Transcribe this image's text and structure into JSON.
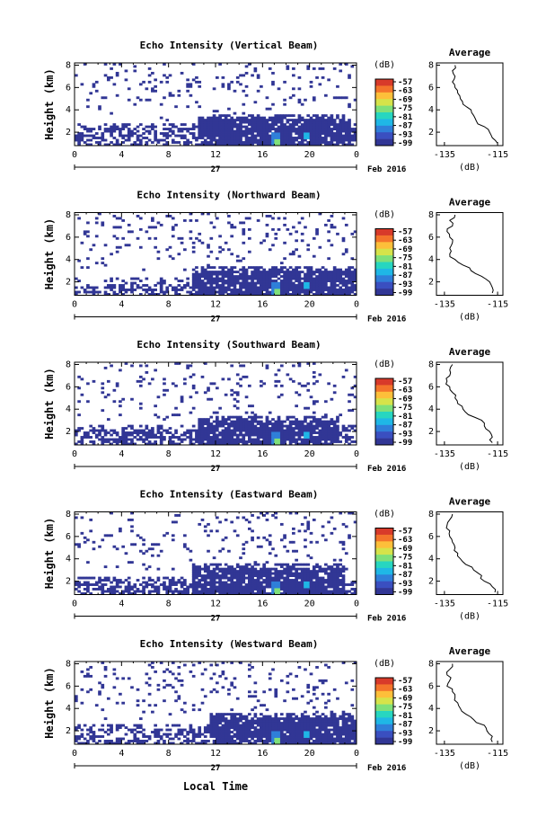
{
  "figure": {
    "xaxis_label": "Local Time",
    "date_label": "27",
    "month_label": "Feb 2016",
    "colorbar_unit": "(dB)",
    "colorbar_ticks": [
      "-57",
      "-63",
      "-69",
      "-75",
      "-81",
      "-87",
      "-93",
      "-99"
    ],
    "colorbar_colors": [
      "#313695",
      "#3a4fc0",
      "#2f7fd9",
      "#1fb7e6",
      "#27d6c0",
      "#7fe07a",
      "#d6e34a",
      "#fdbf3a",
      "#f4742b",
      "#d83a2a"
    ]
  },
  "chart_data": [
    {
      "type": "heatmap",
      "title": "Echo Intensity (Vertical Beam)",
      "ylabel": "Height (km)",
      "xlabel": "Local Time",
      "x_ticks": [
        "0",
        "4",
        "8",
        "12",
        "16",
        "20",
        "0"
      ],
      "y_ticks": [
        "2",
        "4",
        "6",
        "8"
      ],
      "xlim": [
        0,
        24
      ],
      "ylim": [
        0.8,
        8.2
      ],
      "colorbar_label": "(dB)",
      "clim": [
        -99,
        -57
      ],
      "layers": [
        {
          "h_top": 2.8,
          "t_start": 0.0,
          "t_end": 24.0,
          "value": -97,
          "density": 0.55
        },
        {
          "h_top": 3.6,
          "t_start": 10.5,
          "t_end": 23.5,
          "value": -97,
          "density": 0.9
        }
      ],
      "hotspots": [
        {
          "t": 17.2,
          "h_min": 0.8,
          "h_max": 2.0,
          "value": -84
        },
        {
          "t": 19.8,
          "h_min": 1.4,
          "h_max": 2.6,
          "value": -90
        }
      ],
      "average_profile": {
        "title": "Average",
        "xlabel": "(dB)",
        "x_ticks": [
          "-135",
          "-115"
        ],
        "y_ticks": [
          "2",
          "4",
          "6",
          "8"
        ],
        "xlim": [
          -138,
          -113
        ],
        "height": [
          1.0,
          1.5,
          2.0,
          2.5,
          3.0,
          3.5,
          4.0,
          4.5,
          5.0,
          5.5,
          6.0,
          6.5,
          7.0,
          7.5,
          8.0
        ],
        "db": [
          -115,
          -117,
          -118,
          -120,
          -123,
          -124,
          -125,
          -128,
          -129,
          -130,
          -131,
          -132,
          -131,
          -132,
          -131
        ]
      }
    },
    {
      "type": "heatmap",
      "title": "Echo Intensity (Northward Beam)",
      "ylabel": "Height (km)",
      "xlabel": "Local Time",
      "x_ticks": [
        "0",
        "4",
        "8",
        "12",
        "16",
        "20",
        "0"
      ],
      "y_ticks": [
        "2",
        "4",
        "6",
        "8"
      ],
      "xlim": [
        0,
        24
      ],
      "ylim": [
        0.8,
        8.2
      ],
      "colorbar_label": "(dB)",
      "clim": [
        -99,
        -57
      ],
      "layers": [
        {
          "h_top": 2.4,
          "t_start": 0.0,
          "t_end": 24.0,
          "value": -97,
          "density": 0.5
        },
        {
          "h_top": 3.4,
          "t_start": 10.0,
          "t_end": 24.0,
          "value": -97,
          "density": 0.9
        }
      ],
      "hotspots": [
        {
          "t": 17.2,
          "h_min": 0.8,
          "h_max": 2.0,
          "value": -84
        },
        {
          "t": 19.8,
          "h_min": 1.4,
          "h_max": 2.6,
          "value": -90
        }
      ],
      "average_profile": {
        "title": "Average",
        "xlabel": "(dB)",
        "x_ticks": [
          "-135",
          "-115"
        ],
        "y_ticks": [
          "2",
          "4",
          "6",
          "8"
        ],
        "xlim": [
          -138,
          -113
        ],
        "height": [
          1.0,
          1.5,
          2.0,
          2.5,
          3.0,
          3.5,
          4.0,
          4.5,
          5.0,
          5.5,
          6.0,
          6.5,
          7.0,
          7.5,
          8.0
        ],
        "db": [
          -117,
          -117,
          -118,
          -121,
          -125,
          -128,
          -131,
          -133,
          -133,
          -132,
          -133,
          -134,
          -132,
          -133,
          -131
        ]
      }
    },
    {
      "type": "heatmap",
      "title": "Echo Intensity (Southward Beam)",
      "ylabel": "Height (km)",
      "xlabel": "Local Time",
      "x_ticks": [
        "0",
        "4",
        "8",
        "12",
        "16",
        "20",
        "0"
      ],
      "y_ticks": [
        "2",
        "4",
        "6",
        "8"
      ],
      "xlim": [
        0,
        24
      ],
      "ylim": [
        0.8,
        8.2
      ],
      "colorbar_label": "(dB)",
      "clim": [
        -99,
        -57
      ],
      "layers": [
        {
          "h_top": 2.6,
          "t_start": 0.0,
          "t_end": 24.0,
          "value": -97,
          "density": 0.55
        },
        {
          "h_top": 3.4,
          "t_start": 10.5,
          "t_end": 22.5,
          "value": -97,
          "density": 0.9
        }
      ],
      "hotspots": [
        {
          "t": 17.2,
          "h_min": 0.8,
          "h_max": 2.0,
          "value": -84
        },
        {
          "t": 19.8,
          "h_min": 1.4,
          "h_max": 2.6,
          "value": -90
        }
      ],
      "average_profile": {
        "title": "Average",
        "xlabel": "(dB)",
        "x_ticks": [
          "-135",
          "-115"
        ],
        "y_ticks": [
          "2",
          "4",
          "6",
          "8"
        ],
        "xlim": [
          -138,
          -113
        ],
        "height": [
          1.0,
          1.5,
          2.0,
          2.5,
          3.0,
          3.5,
          4.0,
          4.5,
          5.0,
          5.5,
          6.0,
          6.5,
          7.0,
          7.5,
          8.0
        ],
        "db": [
          -117,
          -117,
          -118,
          -120,
          -121,
          -126,
          -128,
          -130,
          -131,
          -132,
          -133,
          -134,
          -133,
          -133,
          -132
        ]
      }
    },
    {
      "type": "heatmap",
      "title": "Echo Intensity (Eastward Beam)",
      "ylabel": "Height (km)",
      "xlabel": "Local Time",
      "x_ticks": [
        "0",
        "4",
        "8",
        "12",
        "16",
        "20",
        "0"
      ],
      "y_ticks": [
        "2",
        "4",
        "6",
        "8"
      ],
      "xlim": [
        0,
        24
      ],
      "ylim": [
        0.8,
        8.2
      ],
      "colorbar_label": "(dB)",
      "clim": [
        -99,
        -57
      ],
      "layers": [
        {
          "h_top": 2.4,
          "t_start": 0.0,
          "t_end": 24.0,
          "value": -97,
          "density": 0.55
        },
        {
          "h_top": 3.6,
          "t_start": 10.0,
          "t_end": 23.0,
          "value": -97,
          "density": 0.9
        }
      ],
      "hotspots": [
        {
          "t": 17.2,
          "h_min": 0.8,
          "h_max": 2.0,
          "value": -84
        },
        {
          "t": 19.8,
          "h_min": 1.4,
          "h_max": 2.6,
          "value": -90
        }
      ],
      "average_profile": {
        "title": "Average",
        "xlabel": "(dB)",
        "x_ticks": [
          "-135",
          "-115"
        ],
        "y_ticks": [
          "2",
          "4",
          "6",
          "8"
        ],
        "xlim": [
          -138,
          -113
        ],
        "height": [
          1.0,
          1.5,
          2.0,
          2.5,
          3.0,
          3.5,
          4.0,
          4.5,
          5.0,
          5.5,
          6.0,
          6.5,
          7.0,
          7.5,
          8.0
        ],
        "db": [
          -116,
          -117,
          -120,
          -121,
          -124,
          -127,
          -129,
          -130,
          -131,
          -132,
          -133,
          -133,
          -134,
          -133,
          -132
        ]
      }
    },
    {
      "type": "heatmap",
      "title": "Echo Intensity (Westward Beam)",
      "ylabel": "Height (km)",
      "xlabel": "Local Time",
      "x_ticks": [
        "0",
        "4",
        "8",
        "12",
        "16",
        "20",
        "0"
      ],
      "y_ticks": [
        "2",
        "4",
        "6",
        "8"
      ],
      "xlim": [
        0,
        24
      ],
      "ylim": [
        0.8,
        8.2
      ],
      "colorbar_label": "(dB)",
      "clim": [
        -99,
        -57
      ],
      "layers": [
        {
          "h_top": 2.6,
          "t_start": 0.0,
          "t_end": 24.0,
          "value": -97,
          "density": 0.5
        },
        {
          "h_top": 3.6,
          "t_start": 11.5,
          "t_end": 24.0,
          "value": -97,
          "density": 0.9
        }
      ],
      "hotspots": [
        {
          "t": 17.2,
          "h_min": 0.8,
          "h_max": 2.0,
          "value": -84
        },
        {
          "t": 19.8,
          "h_min": 1.4,
          "h_max": 2.6,
          "value": -90
        }
      ],
      "average_profile": {
        "title": "Average",
        "xlabel": "(dB)",
        "x_ticks": [
          "-135",
          "-115"
        ],
        "y_ticks": [
          "2",
          "4",
          "6",
          "8"
        ],
        "xlim": [
          -138,
          -113
        ],
        "height": [
          1.0,
          1.5,
          2.0,
          2.5,
          3.0,
          3.5,
          4.0,
          4.5,
          5.0,
          5.5,
          6.0,
          6.5,
          7.0,
          7.5,
          8.0
        ],
        "db": [
          -117,
          -117,
          -119,
          -120,
          -124,
          -127,
          -129,
          -130,
          -131,
          -132,
          -134,
          -133,
          -134,
          -133,
          -132
        ]
      }
    }
  ]
}
